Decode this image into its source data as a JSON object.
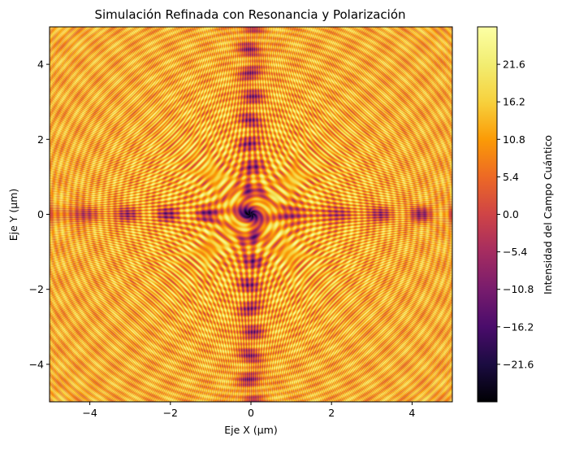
{
  "chart_data": {
    "type": "heatmap",
    "title": "Simulación Refinada con Resonancia y Polarización",
    "xlabel": "Eje X (μm)",
    "ylabel": "Eje Y (μm)",
    "xlim": [
      -5,
      5
    ],
    "ylim": [
      -5,
      5
    ],
    "x_ticks": [
      -4,
      -2,
      0,
      2,
      4
    ],
    "y_ticks": [
      -4,
      -2,
      0,
      2,
      4
    ],
    "x_tick_labels": [
      "−4",
      "−2",
      "0",
      "2",
      "4"
    ],
    "y_tick_labels": [
      "−4",
      "−2",
      "0",
      "2",
      "4"
    ],
    "colormap": "inferno",
    "colorbar": {
      "label": "Intensidad del Campo Cuántico",
      "range": [
        -27,
        27
      ],
      "ticks": [
        21.6,
        16.2,
        10.8,
        5.4,
        0.0,
        -5.4,
        -10.8,
        -16.2,
        -21.6
      ],
      "tick_labels": [
        "21.6",
        "16.2",
        "10.8",
        "5.4",
        "0.0",
        "−5.4",
        "−10.8",
        "−16.2",
        "−21.6"
      ]
    },
    "grid": false
  }
}
